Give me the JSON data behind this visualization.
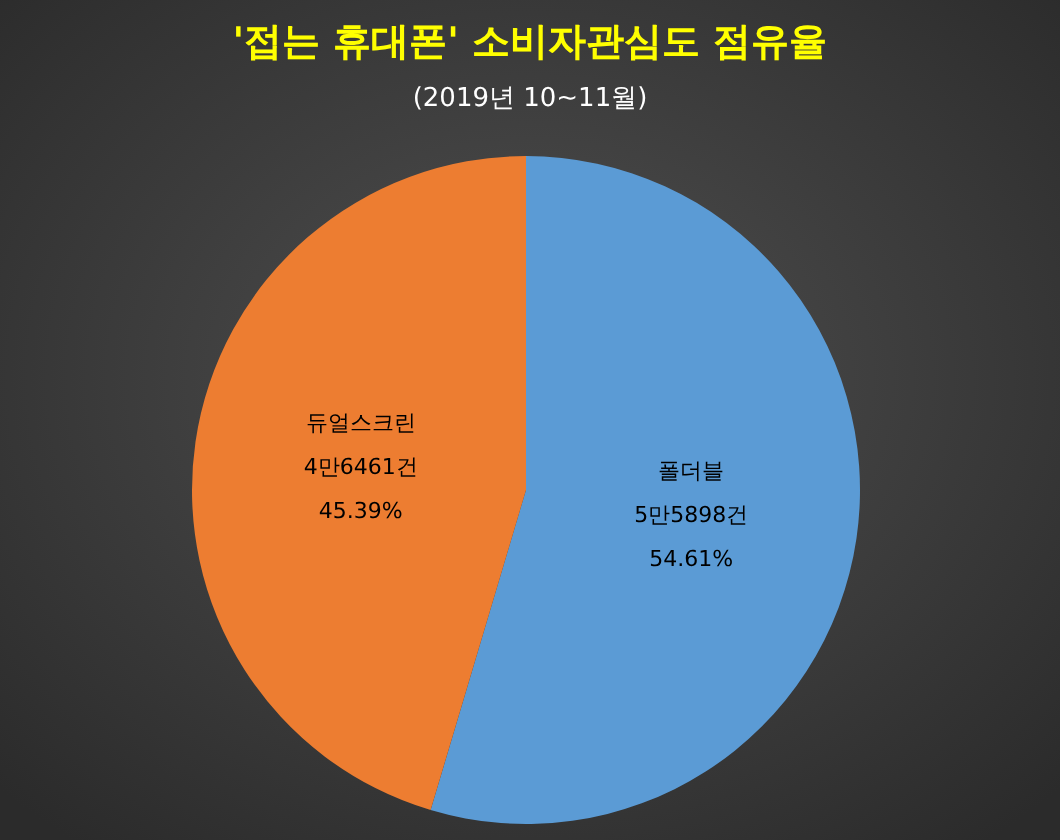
{
  "chart_data": {
    "type": "pie",
    "title": "'접는 휴대폰' 소비자관심도 점유율",
    "subtitle": "(2019년 10~11월)",
    "categories": [
      "폴더블",
      "듀얼스크린"
    ],
    "values": [
      54.61,
      45.39
    ],
    "value_labels": [
      "5만5898건\n54.61%",
      "4만6461건\n45.39%"
    ],
    "colors": [
      "#5b9bd5",
      "#ed7d31"
    ]
  }
}
